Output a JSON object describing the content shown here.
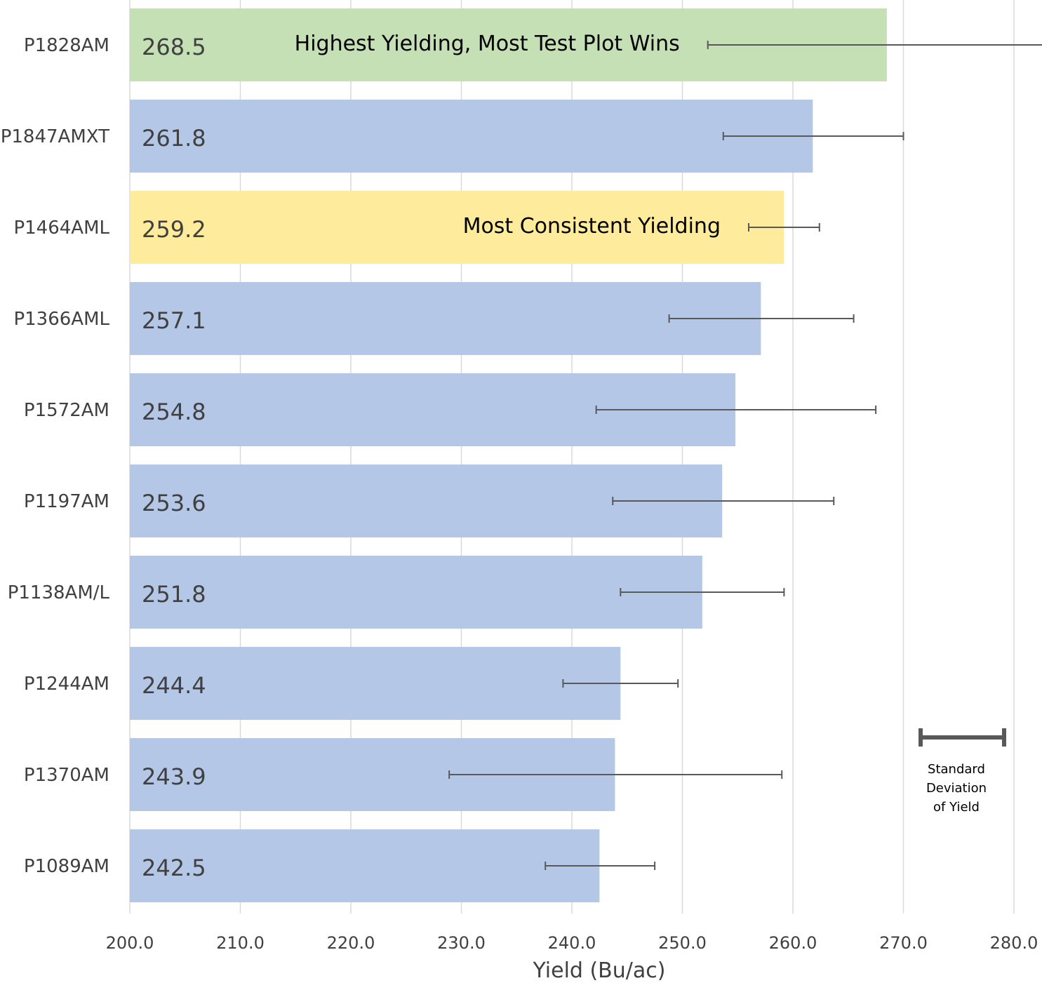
{
  "chart_data": {
    "type": "bar",
    "orientation": "horizontal",
    "title": "",
    "xlabel": "Yield (Bu/ac)",
    "ylabel": "",
    "xlim": [
      200,
      280
    ],
    "x_ticks": [
      "200.0",
      "210.0",
      "220.0",
      "230.0",
      "240.0",
      "250.0",
      "260.0",
      "270.0",
      "280.0"
    ],
    "grid": "vertical",
    "categories": [
      "P1828AM",
      "P1847AMXT",
      "P1464AML",
      "P1366AML",
      "P1572AM",
      "P1197AM",
      "P1138AM/L",
      "P1244AM",
      "P1370AM",
      "P1089AM"
    ],
    "values": [
      268.5,
      261.8,
      259.2,
      257.1,
      254.8,
      253.6,
      251.8,
      244.4,
      243.9,
      242.5
    ],
    "value_labels": [
      "268.5",
      "261.8",
      "259.2",
      "257.1",
      "254.8",
      "253.6",
      "251.8",
      "244.4",
      "243.9",
      "242.5"
    ],
    "error_bars": [
      [
        252.3,
        290.0
      ],
      [
        253.7,
        270.0
      ],
      [
        256.0,
        262.4
      ],
      [
        248.8,
        265.5
      ],
      [
        242.2,
        267.5
      ],
      [
        243.7,
        263.7
      ],
      [
        244.4,
        259.2
      ],
      [
        239.2,
        249.6
      ],
      [
        228.9,
        259.0
      ],
      [
        237.6,
        247.5
      ]
    ],
    "bar_colors": [
      "#c5e0b4",
      "#b4c7e7",
      "#ffeb9c",
      "#b4c7e7",
      "#b4c7e7",
      "#b4c7e7",
      "#b4c7e7",
      "#b4c7e7",
      "#b4c7e7",
      "#b4c7e7"
    ],
    "annotations": [
      {
        "category": "P1828AM",
        "text": "Highest Yielding, Most Test Plot Wins"
      },
      {
        "category": "P1464AML",
        "text": "Most Consistent Yielding"
      }
    ],
    "legend": {
      "lines": [
        "Standard",
        "Deviation",
        "of Yield"
      ],
      "placement": "bottom-right"
    }
  },
  "colors": {
    "default_bar": "#b4c7e7",
    "highlight_top": "#c5e0b4",
    "highlight_consistent": "#ffeb9c",
    "error_bar": "#595959",
    "grid": "#d9d9d9",
    "text": "#404040"
  }
}
